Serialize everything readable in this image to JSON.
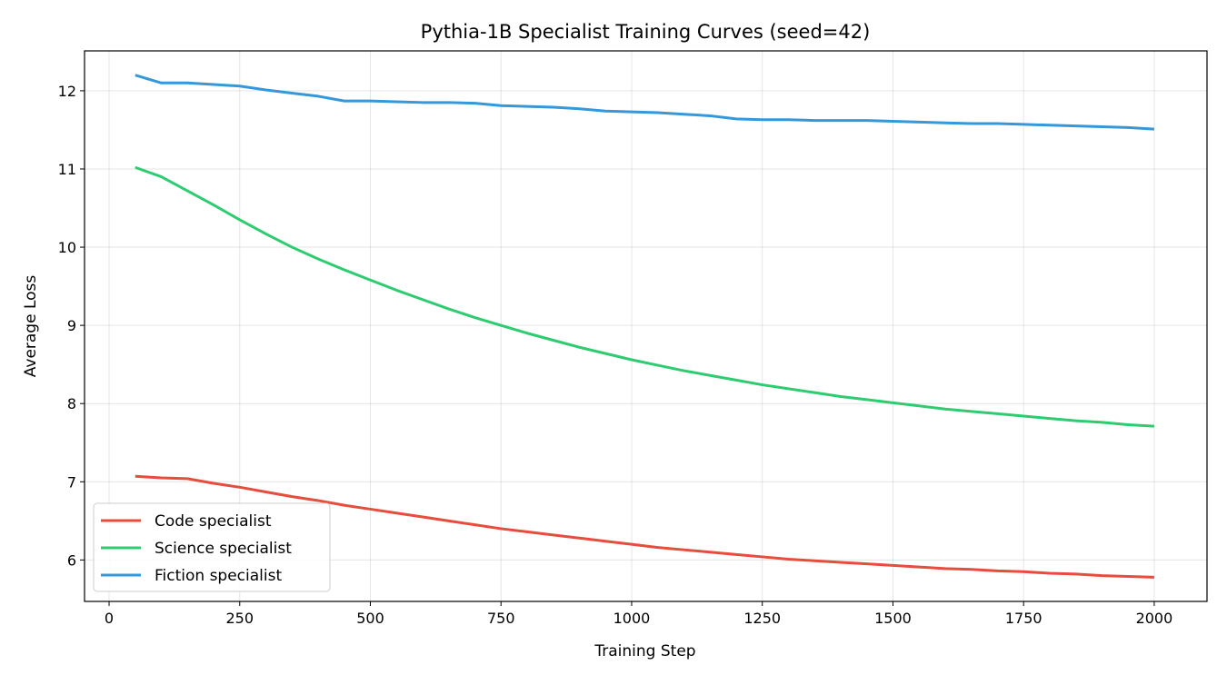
{
  "chart_data": {
    "type": "line",
    "title": "Pythia-1B Specialist Training Curves (seed=42)",
    "xlabel": "Training Step",
    "ylabel": "Average Loss",
    "xlim": [
      -47,
      2101
    ],
    "ylim": [
      5.47,
      12.51
    ],
    "xticks": [
      0,
      250,
      500,
      750,
      1000,
      1250,
      1500,
      1750,
      2000
    ],
    "yticks": [
      6,
      7,
      8,
      9,
      10,
      11,
      12
    ],
    "grid": true,
    "legend_position": "lower-left",
    "x": [
      50,
      100,
      150,
      200,
      250,
      300,
      350,
      400,
      450,
      500,
      550,
      600,
      650,
      700,
      750,
      800,
      850,
      900,
      950,
      1000,
      1050,
      1100,
      1150,
      1200,
      1250,
      1300,
      1350,
      1400,
      1450,
      1500,
      1550,
      1600,
      1650,
      1700,
      1750,
      1800,
      1850,
      1900,
      1950,
      2000
    ],
    "series": [
      {
        "name": "Code specialist",
        "color": "#e74c3c",
        "values": [
          7.07,
          7.05,
          7.04,
          6.98,
          6.93,
          6.87,
          6.81,
          6.76,
          6.7,
          6.65,
          6.6,
          6.55,
          6.5,
          6.45,
          6.4,
          6.36,
          6.32,
          6.28,
          6.24,
          6.2,
          6.16,
          6.13,
          6.1,
          6.07,
          6.04,
          6.01,
          5.99,
          5.97,
          5.95,
          5.93,
          5.91,
          5.89,
          5.88,
          5.86,
          5.85,
          5.83,
          5.82,
          5.8,
          5.79,
          5.78
        ]
      },
      {
        "name": "Science specialist",
        "color": "#2ecc71",
        "values": [
          11.02,
          10.9,
          10.72,
          10.54,
          10.35,
          10.17,
          10.0,
          9.85,
          9.71,
          9.58,
          9.45,
          9.33,
          9.21,
          9.1,
          9.0,
          8.9,
          8.81,
          8.72,
          8.64,
          8.56,
          8.49,
          8.42,
          8.36,
          8.3,
          8.24,
          8.19,
          8.14,
          8.09,
          8.05,
          8.01,
          7.97,
          7.93,
          7.9,
          7.87,
          7.84,
          7.81,
          7.78,
          7.76,
          7.73,
          7.71
        ]
      },
      {
        "name": "Fiction specialist",
        "color": "#3498db",
        "values": [
          12.2,
          12.1,
          12.1,
          12.08,
          12.06,
          12.01,
          11.97,
          11.93,
          11.87,
          11.87,
          11.86,
          11.85,
          11.85,
          11.84,
          11.81,
          11.8,
          11.79,
          11.77,
          11.74,
          11.73,
          11.72,
          11.7,
          11.68,
          11.64,
          11.63,
          11.63,
          11.62,
          11.62,
          11.62,
          11.61,
          11.6,
          11.59,
          11.58,
          11.58,
          11.57,
          11.56,
          11.55,
          11.54,
          11.53,
          11.51
        ]
      }
    ]
  }
}
